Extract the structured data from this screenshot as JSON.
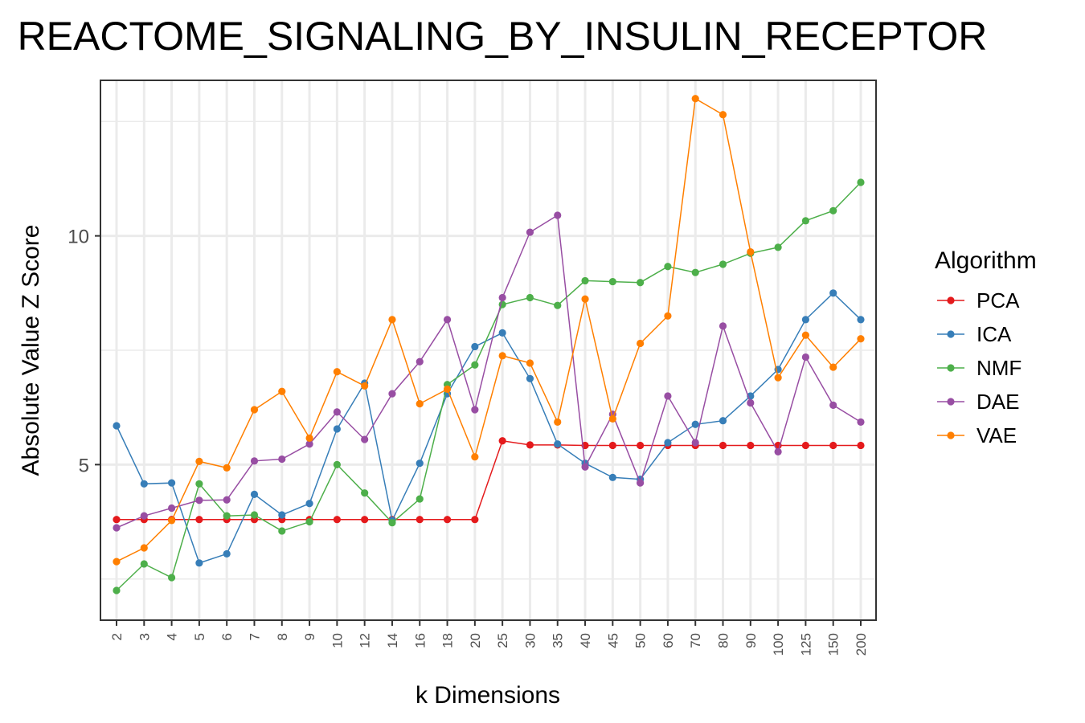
{
  "chart_data": {
    "type": "line",
    "title": "REACTOME_SIGNALING_BY_INSULIN_RECEPTOR",
    "xlabel": "k Dimensions",
    "ylabel": "Absolute Value Z Score",
    "categories": [
      "2",
      "3",
      "4",
      "5",
      "6",
      "7",
      "8",
      "9",
      "10",
      "12",
      "14",
      "16",
      "18",
      "20",
      "25",
      "30",
      "35",
      "40",
      "45",
      "50",
      "60",
      "70",
      "80",
      "90",
      "100",
      "125",
      "150",
      "200"
    ],
    "yticks": [
      5,
      10
    ],
    "ylim": [
      1.6,
      13.4
    ],
    "grid": true,
    "legend_title": "Algorithm",
    "legend_position": "right",
    "series": [
      {
        "name": "PCA",
        "color": "#e41a1c",
        "values": [
          3.8,
          3.8,
          3.8,
          3.8,
          3.8,
          3.8,
          3.8,
          3.8,
          3.8,
          3.8,
          3.8,
          3.8,
          3.8,
          3.8,
          5.52,
          5.43,
          5.43,
          5.42,
          5.42,
          5.42,
          5.42,
          5.42,
          5.42,
          5.42,
          5.42,
          5.42,
          5.42,
          5.42
        ]
      },
      {
        "name": "ICA",
        "color": "#377eb8",
        "values": [
          5.85,
          4.58,
          4.6,
          2.85,
          3.05,
          4.35,
          3.9,
          4.15,
          5.78,
          6.78,
          3.78,
          5.03,
          6.55,
          7.58,
          7.88,
          6.88,
          5.45,
          5.03,
          4.72,
          4.68,
          5.48,
          5.88,
          5.96,
          6.5,
          7.08,
          8.17,
          8.75,
          8.17
        ]
      },
      {
        "name": "NMF",
        "color": "#4daf4a",
        "values": [
          2.25,
          2.83,
          2.53,
          4.58,
          3.88,
          3.9,
          3.55,
          3.75,
          5.0,
          4.38,
          3.73,
          4.25,
          6.75,
          7.18,
          8.5,
          8.65,
          8.48,
          9.02,
          9.0,
          8.98,
          9.33,
          9.2,
          9.38,
          9.62,
          9.75,
          10.33,
          10.55,
          11.17
        ]
      },
      {
        "name": "DAE",
        "color": "#984ea3",
        "values": [
          3.62,
          3.88,
          4.05,
          4.22,
          4.23,
          5.08,
          5.12,
          5.45,
          6.15,
          5.55,
          6.55,
          7.25,
          8.17,
          6.2,
          8.65,
          10.08,
          10.45,
          4.95,
          6.1,
          4.6,
          6.5,
          5.48,
          8.03,
          6.35,
          5.28,
          7.35,
          6.3,
          5.93
        ]
      },
      {
        "name": "VAE",
        "color": "#ff7f00",
        "values": [
          2.88,
          3.18,
          3.78,
          5.07,
          4.93,
          6.2,
          6.6,
          5.58,
          7.03,
          6.72,
          8.17,
          6.33,
          6.65,
          5.17,
          7.38,
          7.22,
          5.93,
          8.62,
          6.0,
          7.65,
          8.25,
          13.0,
          12.65,
          9.65,
          6.9,
          7.83,
          7.13,
          7.75
        ]
      }
    ]
  }
}
